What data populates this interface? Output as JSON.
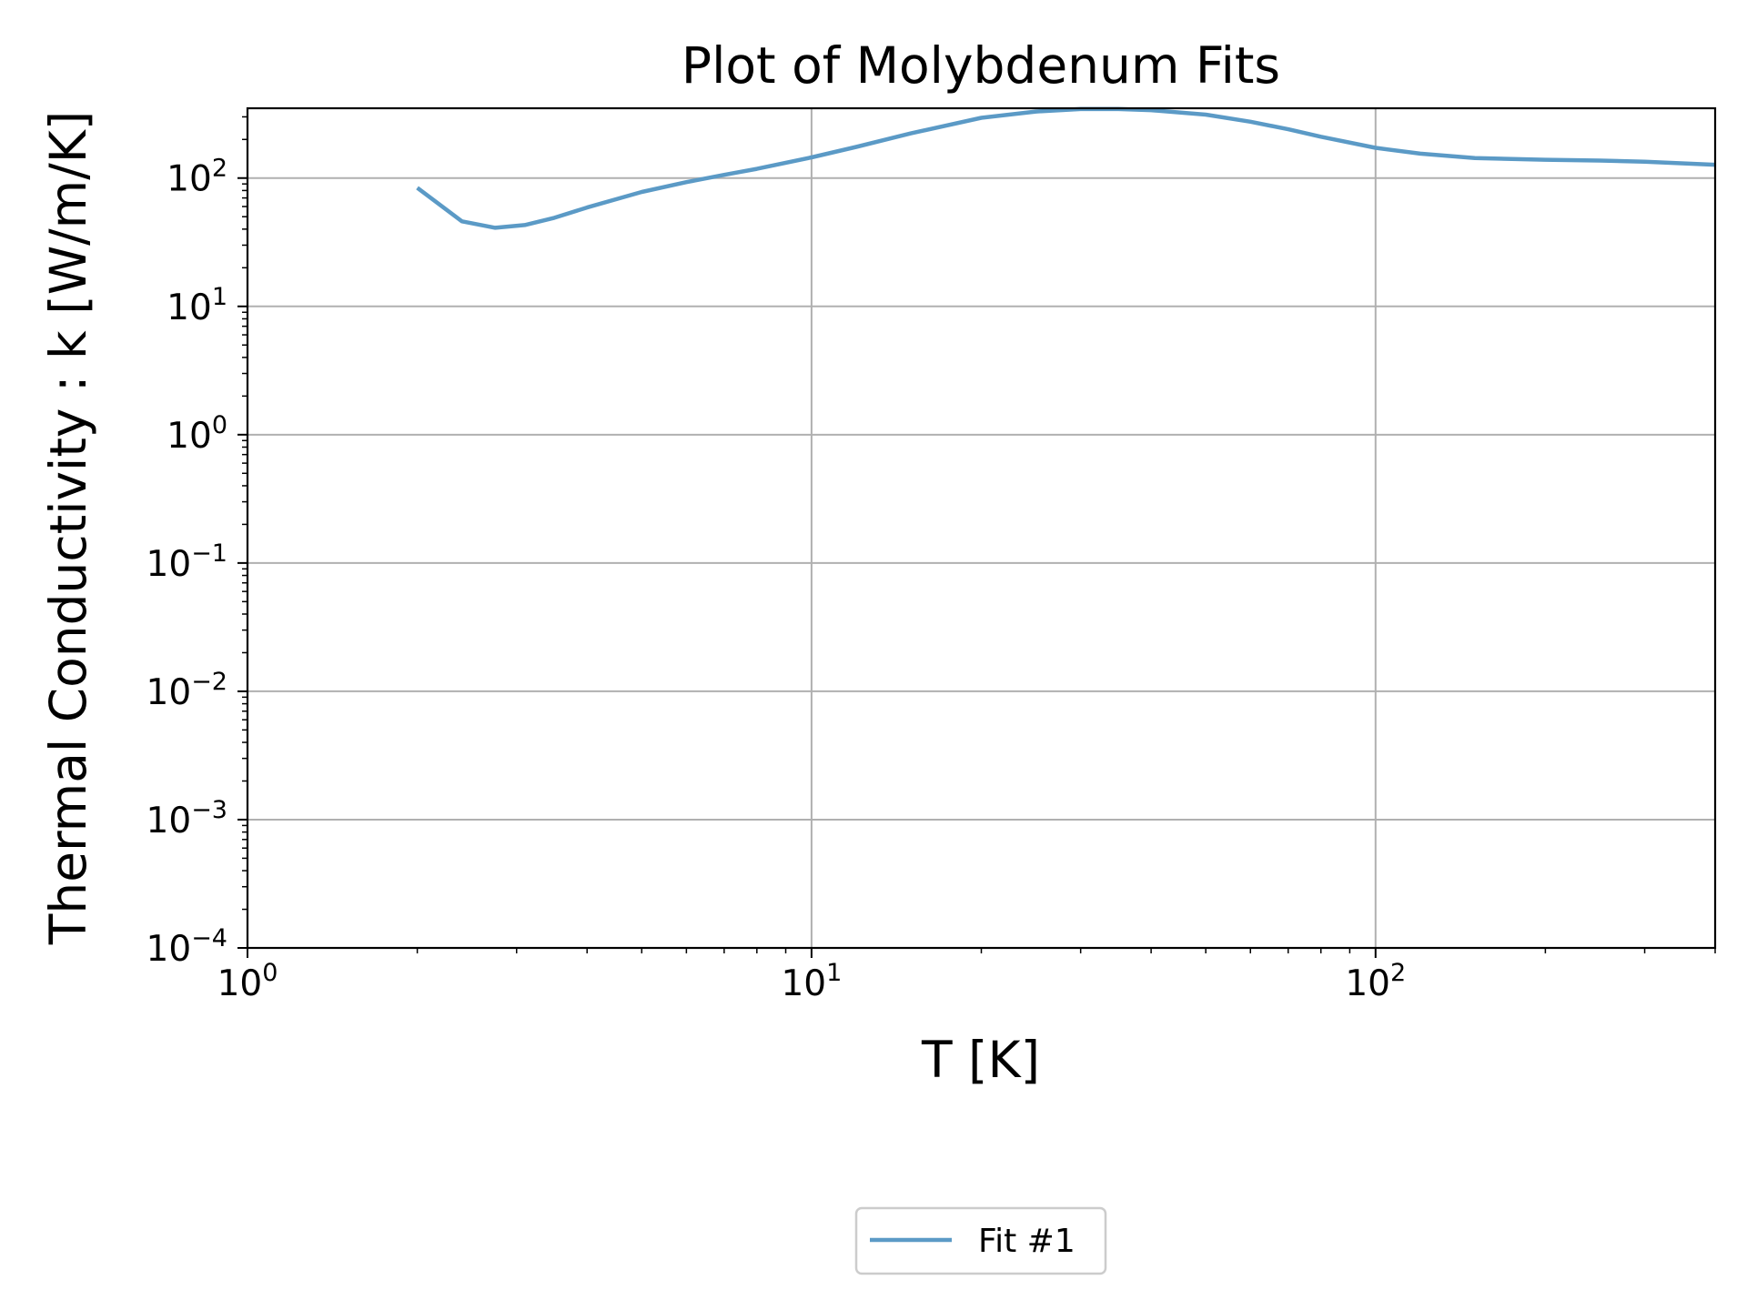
{
  "chart_data": {
    "type": "line",
    "title": "Plot of Molybdenum Fits",
    "xlabel": "T [K]",
    "ylabel": "Thermal Conductivity : k [W/m/K]",
    "xscale": "log",
    "yscale": "log",
    "xlim": [
      1,
      400
    ],
    "ylim": [
      0.0001,
      350
    ],
    "x_ticks": [
      {
        "value": 1,
        "base": "10",
        "exp": "0"
      },
      {
        "value": 10,
        "base": "10",
        "exp": "1"
      },
      {
        "value": 100,
        "base": "10",
        "exp": "2"
      }
    ],
    "y_ticks": [
      {
        "value": 0.0001,
        "base": "10",
        "exp": "−4"
      },
      {
        "value": 0.001,
        "base": "10",
        "exp": "−3"
      },
      {
        "value": 0.01,
        "base": "10",
        "exp": "−2"
      },
      {
        "value": 0.1,
        "base": "10",
        "exp": "−1"
      },
      {
        "value": 1,
        "base": "10",
        "exp": "0"
      },
      {
        "value": 10,
        "base": "10",
        "exp": "1"
      },
      {
        "value": 100,
        "base": "10",
        "exp": "2"
      }
    ],
    "grid": true,
    "legend_position": "bottom-center, below plot",
    "series": [
      {
        "name": "Fit #1",
        "color": "#5b9ac6",
        "x": [
          2.0,
          2.4,
          2.75,
          3.1,
          3.5,
          4.0,
          5.0,
          6.0,
          7.0,
          8.0,
          10.0,
          12.0,
          15.0,
          20.0,
          25.0,
          30.0,
          35.0,
          40.0,
          50.0,
          60.0,
          70.0,
          80.0,
          100.0,
          120.0,
          150.0,
          200.0,
          250.0,
          300.0,
          400.0
        ],
        "y": [
          84,
          46,
          41,
          43,
          49,
          59,
          78,
          93,
          106,
          118,
          145,
          175,
          223,
          295,
          330,
          345,
          345,
          338,
          312,
          275,
          240,
          210,
          172,
          155,
          143,
          139,
          137,
          134,
          127
        ]
      }
    ]
  }
}
